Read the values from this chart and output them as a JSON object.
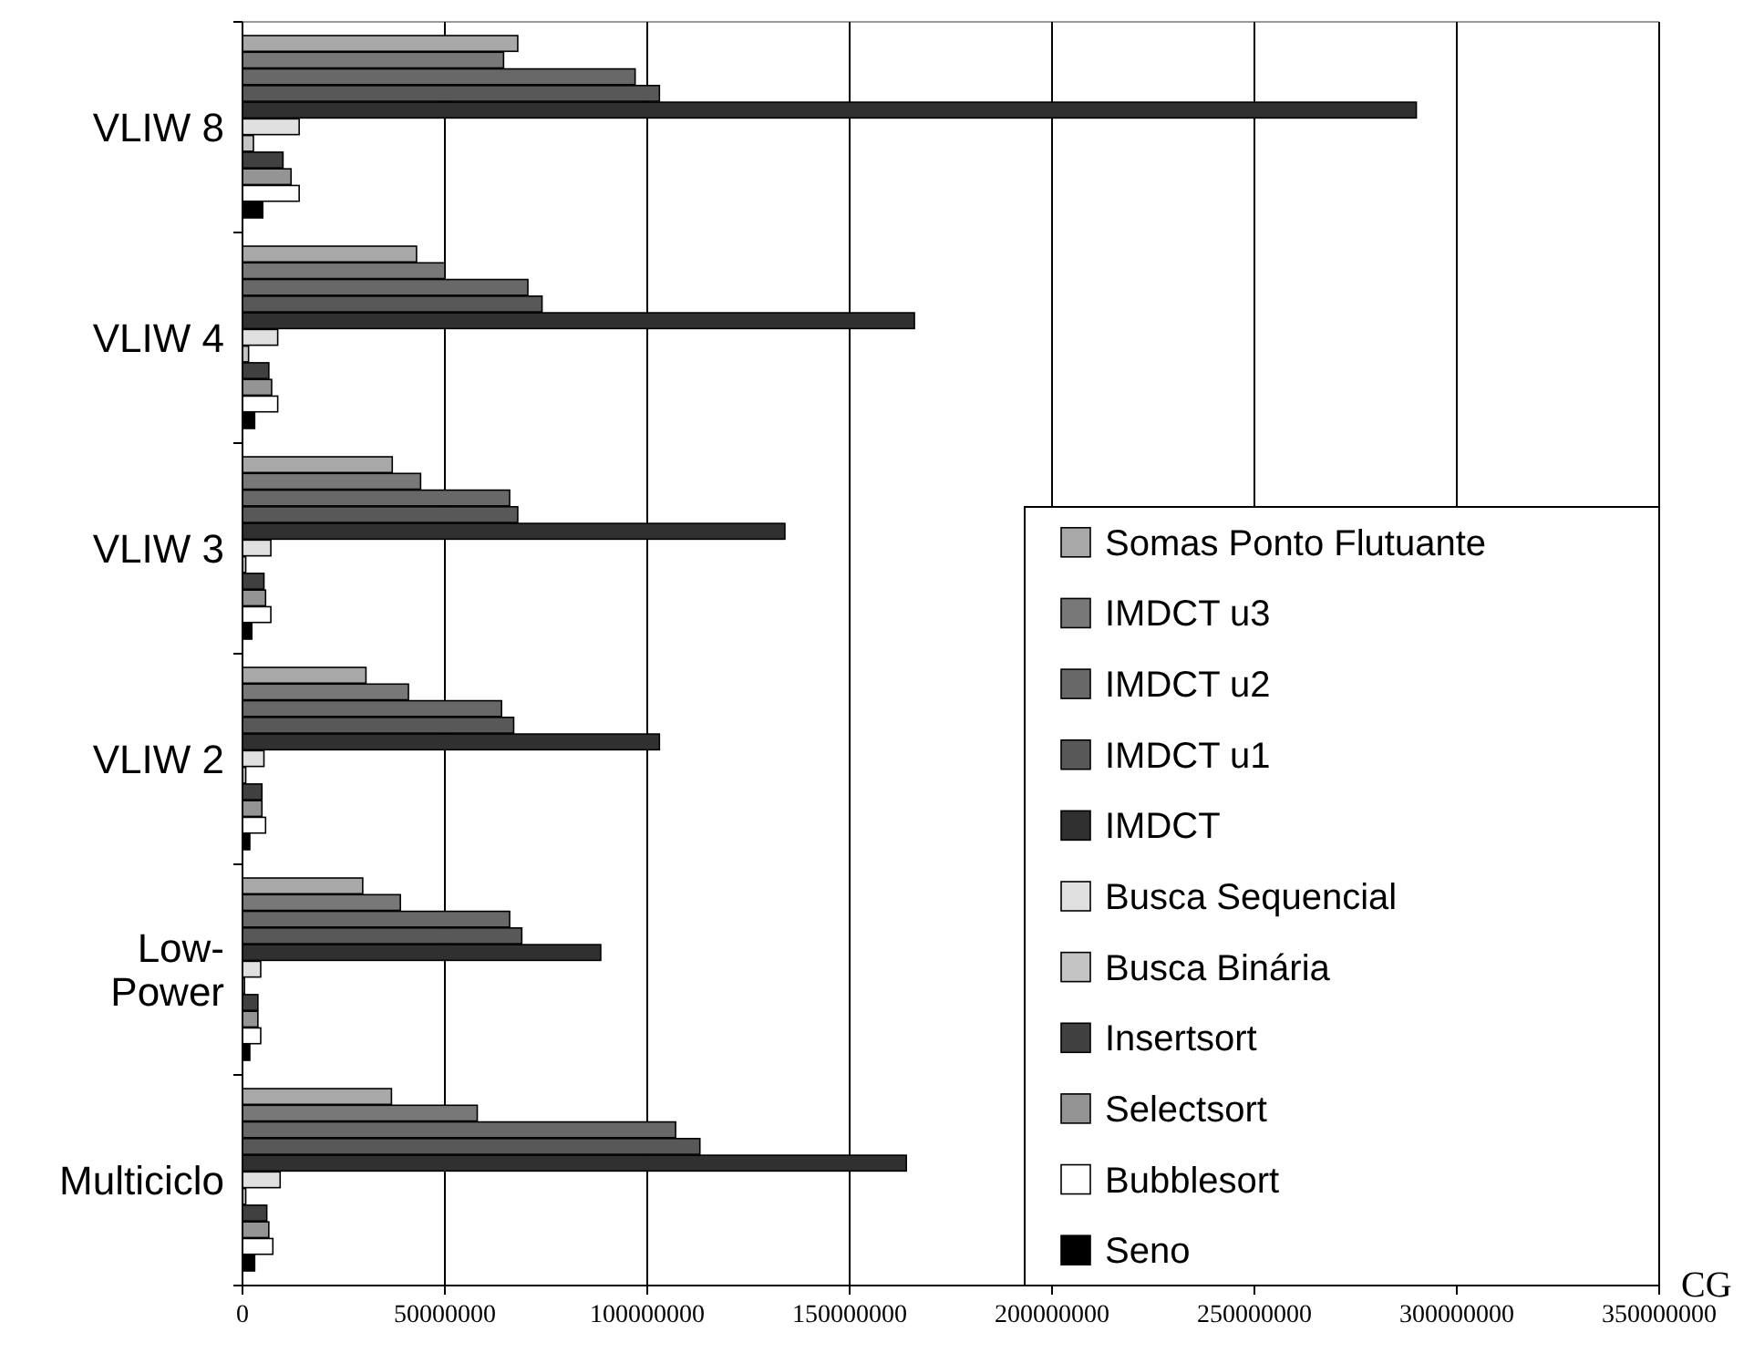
{
  "chart_data": {
    "type": "bar",
    "orientation": "horizontal",
    "xlabel": "CG",
    "categories": [
      "VLIW 8",
      "VLIW 4",
      "VLIW 3",
      "VLIW 2",
      "Low-Power",
      "Multiciclo"
    ],
    "series": [
      {
        "name": "Somas Ponto Flutuante",
        "color": "#a8a8a8",
        "values": [
          68000000,
          43000000,
          37000000,
          30500000,
          29700000,
          36800000
        ]
      },
      {
        "name": "IMDCT u3",
        "color": "#787878",
        "values": [
          64500000,
          50000000,
          44000000,
          41000000,
          39000000,
          58000000
        ]
      },
      {
        "name": "IMDCT u2",
        "color": "#686868",
        "values": [
          97000000,
          70500000,
          66000000,
          64000000,
          66000000,
          107000000
        ]
      },
      {
        "name": "IMDCT u1",
        "color": "#585858",
        "values": [
          103000000,
          74000000,
          68000000,
          67000000,
          69000000,
          113000000
        ]
      },
      {
        "name": "IMDCT",
        "color": "#303030",
        "values": [
          290000000,
          166000000,
          134000000,
          103000000,
          88500000,
          164000000
        ]
      },
      {
        "name": "Busca Sequencial",
        "color": "#e0e0e0",
        "values": [
          14000000,
          8700000,
          7000000,
          5300000,
          4500000,
          9300000
        ]
      },
      {
        "name": "Busca Binária",
        "color": "#c4c4c4",
        "values": [
          2700000,
          1500000,
          800000,
          800000,
          500000,
          800000
        ]
      },
      {
        "name": "Insertsort",
        "color": "#404040",
        "values": [
          10000000,
          6500000,
          5300000,
          4800000,
          3800000,
          6000000
        ]
      },
      {
        "name": "Selectsort",
        "color": "#949494",
        "values": [
          12000000,
          7200000,
          5700000,
          4800000,
          3800000,
          6500000
        ]
      },
      {
        "name": "Bubblesort",
        "color": "#ffffff",
        "values": [
          14000000,
          8700000,
          7000000,
          5700000,
          4500000,
          7500000
        ]
      },
      {
        "name": "Seno",
        "color": "#000000",
        "values": [
          5000000,
          3000000,
          2300000,
          1800000,
          1800000,
          3000000
        ]
      }
    ],
    "xlim": [
      0,
      350000000
    ],
    "xticks": [
      0,
      50000000,
      100000000,
      150000000,
      200000000,
      250000000,
      300000000,
      350000000
    ],
    "grid": "x",
    "legend": "bottom right"
  }
}
